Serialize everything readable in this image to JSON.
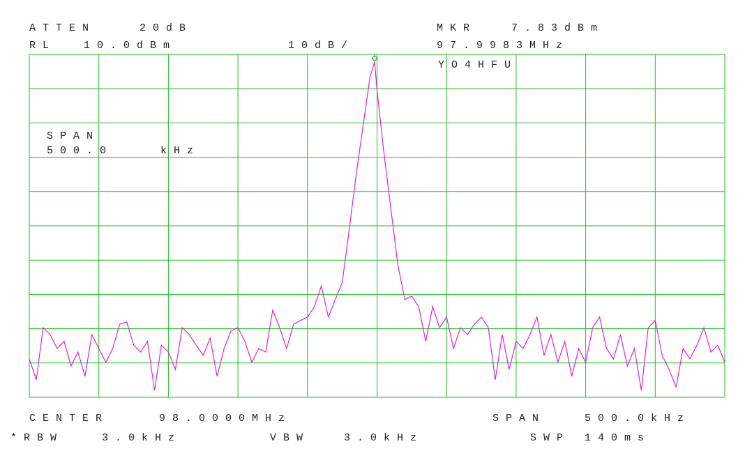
{
  "chart_data": {
    "type": "line",
    "annotations": [
      "ATTEN",
      "20dB",
      "MKR",
      "RL",
      "10.0dBm",
      "10dB/",
      "YO4HFU",
      "SPAN",
      "500.0",
      "kHz",
      "CENTER",
      "98.0000MHz",
      "SPAN",
      "500.0kHz",
      "*RBW",
      "3.0kHz",
      "VBW",
      "3.0kHz",
      "SWP",
      "140ms"
    ],
    "marker": {
      "x": 97.9983,
      "y": 7.83,
      "x_label": "97.9983MHz",
      "y_label": "7.83dBm",
      "color": "#22aa22"
    },
    "xlim": [
      97.75,
      98.25
    ],
    "ylim": [
      -90,
      10
    ],
    "grid": true,
    "grid_color": "#22bb22",
    "x": [
      97.75,
      97.755,
      97.76,
      97.765,
      97.77,
      97.775,
      97.78,
      97.785,
      97.79,
      97.795,
      97.8,
      97.805,
      97.81,
      97.815,
      97.82,
      97.825,
      97.83,
      97.835,
      97.84,
      97.845,
      97.85,
      97.855,
      97.86,
      97.865,
      97.87,
      97.875,
      97.88,
      97.885,
      97.89,
      97.895,
      97.9,
      97.905,
      97.91,
      97.915,
      97.92,
      97.925,
      97.93,
      97.935,
      97.94,
      97.945,
      97.95,
      97.955,
      97.96,
      97.965,
      97.97,
      97.975,
      97.98,
      97.985,
      97.99,
      97.995,
      97.9983,
      98.0,
      98.005,
      98.01,
      98.015,
      98.02,
      98.025,
      98.03,
      98.035,
      98.04,
      98.045,
      98.05,
      98.055,
      98.06,
      98.065,
      98.07,
      98.075,
      98.08,
      98.085,
      98.09,
      98.095,
      98.1,
      98.105,
      98.11,
      98.115,
      98.12,
      98.125,
      98.13,
      98.135,
      98.14,
      98.145,
      98.15,
      98.155,
      98.16,
      98.165,
      98.17,
      98.175,
      98.18,
      98.185,
      98.19,
      98.195,
      98.2,
      98.205,
      98.21,
      98.215,
      98.22,
      98.225,
      98.23,
      98.235,
      98.24,
      98.245,
      98.25
    ],
    "series": [
      {
        "color": "#dd22dd",
        "values": [
          -78.8,
          -84.9,
          -69.7,
          -71.7,
          -75.8,
          -73.7,
          -80.9,
          -76.8,
          -83.9,
          -71.7,
          -75.8,
          -79.8,
          -75.8,
          -68.7,
          -68.0,
          -74.8,
          -76.8,
          -73.7,
          -88.0,
          -74.8,
          -76.8,
          -81.9,
          -69.7,
          -71.7,
          -74.8,
          -77.8,
          -72.7,
          -83.9,
          -75.8,
          -70.7,
          -69.7,
          -73.7,
          -79.8,
          -75.8,
          -76.8,
          -64.6,
          -69.7,
          -75.8,
          -68.7,
          -67.6,
          -66.6,
          -63.6,
          -57.5,
          -66.6,
          -61.5,
          -56.5,
          -41.2,
          -25.0,
          -10.7,
          3.5,
          7.83,
          -0.5,
          -18.9,
          -35.1,
          -51.4,
          -61.5,
          -60.5,
          -63.6,
          -73.7,
          -63.6,
          -69.7,
          -66.6,
          -75.8,
          -69.7,
          -71.7,
          -68.7,
          -66.6,
          -69.7,
          -84.9,
          -71.7,
          -81.9,
          -73.7,
          -75.8,
          -71.7,
          -66.6,
          -77.8,
          -71.7,
          -79.8,
          -73.7,
          -83.9,
          -75.8,
          -79.8,
          -69.7,
          -66.6,
          -75.8,
          -78.8,
          -71.7,
          -80.9,
          -75.8,
          -88.0,
          -69.7,
          -67.6,
          -77.8,
          -81.9,
          -87.0,
          -75.8,
          -78.8,
          -74.8,
          -69.7,
          -76.8,
          -74.8,
          -79.8
        ]
      }
    ]
  }
}
